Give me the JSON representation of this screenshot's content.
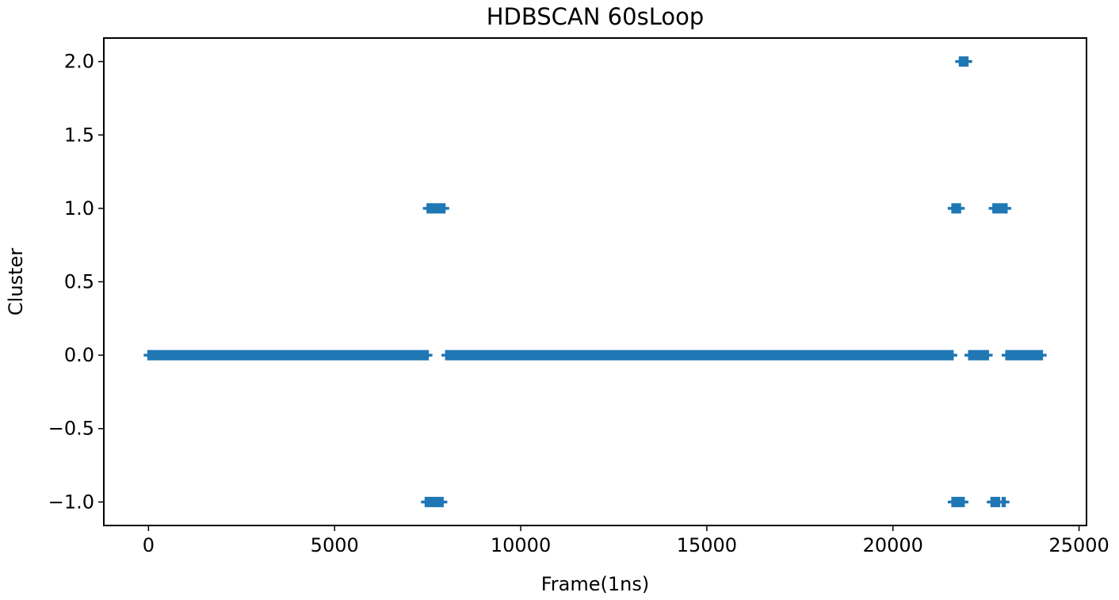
{
  "chart_data": {
    "type": "scatter",
    "title": "HDBSCAN 60sLoop",
    "xlabel": "Frame(1ns)",
    "ylabel": "Cluster",
    "xlim": [
      -1200,
      25200
    ],
    "ylim": [
      -1.16,
      2.16
    ],
    "x_ticks": [
      0,
      5000,
      10000,
      15000,
      20000,
      25000
    ],
    "x_tick_labels": [
      "0",
      "5000",
      "10000",
      "15000",
      "20000",
      "25000"
    ],
    "y_ticks": [
      -1.0,
      -0.5,
      0.0,
      0.5,
      1.0,
      1.5,
      2.0
    ],
    "y_tick_labels": [
      "−1.0",
      "−0.5",
      "0.0",
      "0.5",
      "1.0",
      "1.5",
      "2.0"
    ],
    "grid": false,
    "marker": "+",
    "color": "#1f77b4",
    "series": [
      {
        "segments": [
          {
            "y": 0,
            "x_start": 0,
            "x_end": 7500
          },
          {
            "y": 0,
            "x_start": 8000,
            "x_end": 21600
          },
          {
            "y": 0,
            "x_start": 22050,
            "x_end": 22550
          },
          {
            "y": 0,
            "x_start": 23050,
            "x_end": 24000
          },
          {
            "y": 1,
            "x_start": 7500,
            "x_end": 7950
          },
          {
            "y": 1,
            "x_start": 21600,
            "x_end": 21800
          },
          {
            "y": 1,
            "x_start": 22700,
            "x_end": 23050
          },
          {
            "y": 2,
            "x_start": 21800,
            "x_end": 22000
          },
          {
            "y": -1,
            "x_start": 7450,
            "x_end": 7650
          },
          {
            "y": -1,
            "x_start": 7700,
            "x_end": 7900
          },
          {
            "y": -1,
            "x_start": 21600,
            "x_end": 21700
          },
          {
            "y": -1,
            "x_start": 21750,
            "x_end": 21900
          },
          {
            "y": -1,
            "x_start": 22650,
            "x_end": 22750
          },
          {
            "y": -1,
            "x_start": 22800,
            "x_end": 22850
          },
          {
            "y": -1,
            "x_start": 22950,
            "x_end": 23000
          }
        ]
      }
    ]
  }
}
